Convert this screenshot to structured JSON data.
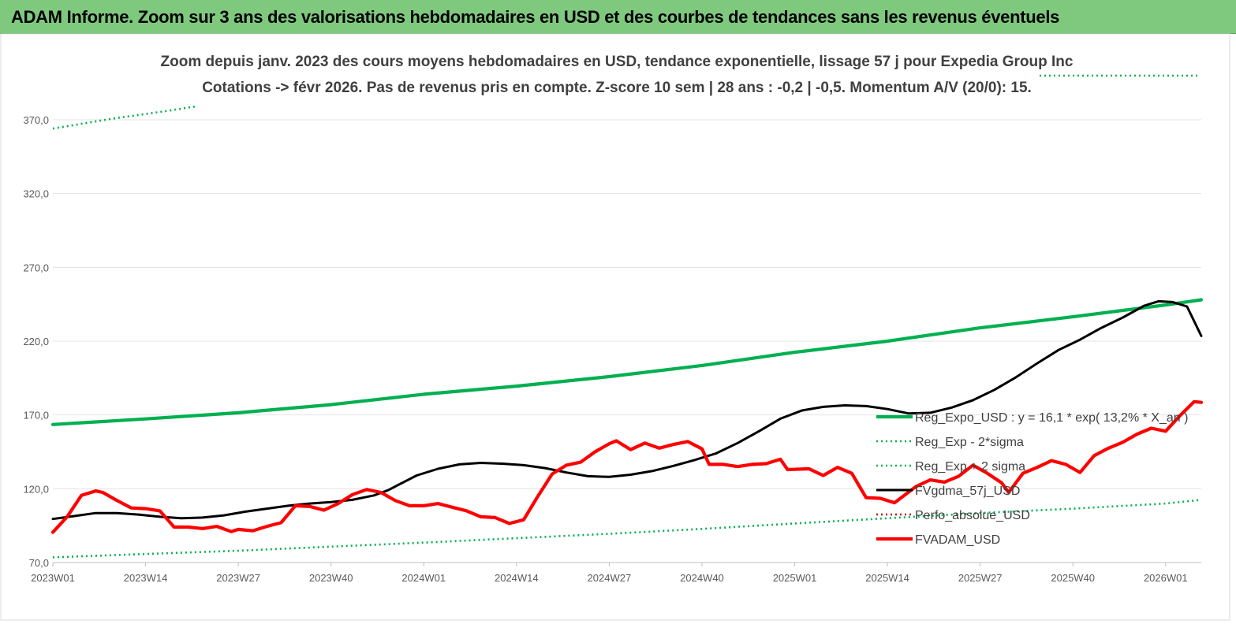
{
  "header": {
    "title": "ADAM Informe. Zoom sur 3 ans des valorisations hebdomadaires en USD et des courbes de tendances sans les revenus éventuels"
  },
  "colors": {
    "header_bg": "#7fc97f",
    "trend": "#00b050",
    "trend_band": "#00b050",
    "moving_avg": "#000000",
    "price": "#ff0000",
    "perf": "#c00000"
  },
  "chart_data": {
    "type": "line",
    "title_line1": "Zoom depuis janv. 2023 des cours moyens hebdomadaires en USD, tendance exponentielle, lissage 57 j pour Expedia Group Inc",
    "title_line2": "Cotations -> févr 2026.  Pas de revenus pris en compte. Z-score 10 sem  | 28 ans : -0,2 | -0,5. Momentum A/V (20/0): 15.",
    "xlabel": "",
    "ylabel": "",
    "ylim": [
      70,
      370
    ],
    "yticks": [
      "70,0",
      "120,0",
      "170,0",
      "220,0",
      "270,0",
      "320,0",
      "370,0"
    ],
    "xticks": [
      "2023W01",
      "2023W14",
      "2023W27",
      "2023W40",
      "2024W01",
      "2024W14",
      "2024W27",
      "2024W40",
      "2025W01",
      "2025W14",
      "2025W27",
      "2025W40",
      "2026W01"
    ],
    "x_start_week_label": "2023W01",
    "n_weeks": 162,
    "grid": "horizontal",
    "legend_position": "right",
    "series": [
      {
        "name": "Reg_Expo_USD : y = 16,1 * exp( 13,2% * X_an )",
        "style": "solid-thick",
        "color": "#00b050",
        "points": [
          [
            0,
            163.5
          ],
          [
            13,
            167.3
          ],
          [
            26,
            171.5
          ],
          [
            39,
            177.0
          ],
          [
            52,
            184.0
          ],
          [
            65,
            189.5
          ],
          [
            78,
            196.0
          ],
          [
            91,
            203.5
          ],
          [
            104,
            212.5
          ],
          [
            117,
            220.0
          ],
          [
            130,
            229.0
          ],
          [
            143,
            236.5
          ],
          [
            156,
            244.5
          ],
          [
            161,
            248.0
          ]
        ]
      },
      {
        "name": "Reg_Exp - 2*sigma",
        "style": "dotted",
        "color": "#00b050",
        "points": [
          [
            0,
            73.5
          ],
          [
            13,
            75.8
          ],
          [
            26,
            78.0
          ],
          [
            39,
            80.8
          ],
          [
            52,
            83.5
          ],
          [
            65,
            86.5
          ],
          [
            78,
            89.5
          ],
          [
            91,
            92.8
          ],
          [
            104,
            96.5
          ],
          [
            117,
            100.0
          ],
          [
            130,
            103.5
          ],
          [
            143,
            106.5
          ],
          [
            156,
            110.0
          ],
          [
            161,
            112.5
          ]
        ]
      },
      {
        "name": "Reg_Exp + 2 sigma",
        "style": "dotted",
        "color": "#00b050",
        "points": [
          [
            0,
            364.0
          ],
          [
            8,
            370.5
          ],
          [
            16,
            376.0
          ],
          [
            20,
            379.0
          ]
        ]
      },
      {
        "name": "FVgdma_57j_USD",
        "style": "solid",
        "color": "#000000",
        "points": [
          [
            0,
            99.5
          ],
          [
            3,
            101.5
          ],
          [
            6,
            103.5
          ],
          [
            9,
            103.5
          ],
          [
            12,
            102.5
          ],
          [
            15,
            101.0
          ],
          [
            18,
            100.0
          ],
          [
            21,
            100.5
          ],
          [
            24,
            102.0
          ],
          [
            27,
            104.5
          ],
          [
            30,
            106.5
          ],
          [
            33,
            108.5
          ],
          [
            36,
            110.0
          ],
          [
            39,
            111.0
          ],
          [
            42,
            112.5
          ],
          [
            45,
            115.5
          ],
          [
            47,
            119.0
          ],
          [
            49,
            124.0
          ],
          [
            51,
            129.0
          ],
          [
            54,
            133.5
          ],
          [
            57,
            136.5
          ],
          [
            60,
            137.5
          ],
          [
            63,
            137.0
          ],
          [
            66,
            136.0
          ],
          [
            69,
            134.0
          ],
          [
            72,
            131.0
          ],
          [
            75,
            128.5
          ],
          [
            78,
            128.0
          ],
          [
            81,
            129.5
          ],
          [
            84,
            132.0
          ],
          [
            87,
            135.5
          ],
          [
            90,
            139.5
          ],
          [
            93,
            144.0
          ],
          [
            96,
            151.0
          ],
          [
            99,
            159.0
          ],
          [
            102,
            167.5
          ],
          [
            105,
            173.0
          ],
          [
            108,
            175.5
          ],
          [
            111,
            176.5
          ],
          [
            114,
            176.0
          ],
          [
            117,
            174.0
          ],
          [
            120,
            171.0
          ],
          [
            123,
            171.5
          ],
          [
            126,
            175.0
          ],
          [
            129,
            180.0
          ],
          [
            132,
            187.0
          ],
          [
            135,
            195.5
          ],
          [
            138,
            205.0
          ],
          [
            141,
            214.0
          ],
          [
            144,
            221.0
          ],
          [
            147,
            229.0
          ],
          [
            150,
            236.0
          ],
          [
            153,
            244.0
          ],
          [
            155,
            247.0
          ],
          [
            157,
            246.5
          ],
          [
            159,
            243.5
          ],
          [
            161,
            223.5
          ]
        ]
      },
      {
        "name": "Perfo_absolue_USD",
        "style": "dotted",
        "color": "#c00000",
        "points": []
      },
      {
        "name": "FVADAM_USD",
        "style": "solid-thick",
        "color": "#ff0000",
        "points": [
          [
            0,
            90.5
          ],
          [
            2,
            101.0
          ],
          [
            4,
            115.5
          ],
          [
            6,
            118.5
          ],
          [
            7,
            117.5
          ],
          [
            9,
            112.0
          ],
          [
            11,
            107.0
          ],
          [
            13,
            106.5
          ],
          [
            15,
            105.0
          ],
          [
            17,
            94.0
          ],
          [
            19,
            94.0
          ],
          [
            21,
            93.0
          ],
          [
            23,
            94.5
          ],
          [
            25,
            91.0
          ],
          [
            26,
            92.5
          ],
          [
            28,
            91.5
          ],
          [
            30,
            94.5
          ],
          [
            32,
            97.0
          ],
          [
            34,
            108.5
          ],
          [
            36,
            108.0
          ],
          [
            38,
            105.5
          ],
          [
            40,
            110.0
          ],
          [
            42,
            116.0
          ],
          [
            44,
            119.5
          ],
          [
            46,
            117.5
          ],
          [
            48,
            112.0
          ],
          [
            50,
            108.5
          ],
          [
            52,
            108.5
          ],
          [
            54,
            110.0
          ],
          [
            56,
            107.5
          ],
          [
            58,
            105.0
          ],
          [
            60,
            101.0
          ],
          [
            62,
            100.5
          ],
          [
            64,
            96.5
          ],
          [
            66,
            99.0
          ],
          [
            68,
            115.0
          ],
          [
            70,
            130.0
          ],
          [
            72,
            136.0
          ],
          [
            74,
            138.0
          ],
          [
            76,
            145.0
          ],
          [
            78,
            150.5
          ],
          [
            79,
            152.5
          ],
          [
            81,
            146.5
          ],
          [
            83,
            151.0
          ],
          [
            85,
            147.5
          ],
          [
            87,
            150.0
          ],
          [
            89,
            152.0
          ],
          [
            91,
            147.0
          ],
          [
            92,
            136.5
          ],
          [
            94,
            136.5
          ],
          [
            96,
            135.0
          ],
          [
            98,
            136.5
          ],
          [
            100,
            137.0
          ],
          [
            102,
            140.0
          ],
          [
            103,
            133.0
          ],
          [
            106,
            133.5
          ],
          [
            108,
            129.0
          ],
          [
            110,
            134.5
          ],
          [
            112,
            130.5
          ],
          [
            114,
            114.0
          ],
          [
            116,
            113.5
          ],
          [
            118,
            110.5
          ],
          [
            121,
            121.5
          ],
          [
            123,
            126.0
          ],
          [
            125,
            124.5
          ],
          [
            127,
            128.5
          ],
          [
            129,
            136.0
          ],
          [
            131,
            130.5
          ],
          [
            133,
            124.0
          ],
          [
            134,
            117.5
          ],
          [
            136,
            130.5
          ],
          [
            138,
            134.5
          ],
          [
            140,
            139.0
          ],
          [
            142,
            136.5
          ],
          [
            144,
            131.0
          ],
          [
            146,
            142.5
          ],
          [
            148,
            147.5
          ],
          [
            150,
            151.5
          ],
          [
            152,
            157.0
          ],
          [
            154,
            161.0
          ],
          [
            156,
            159.0
          ],
          [
            158,
            169.5
          ],
          [
            160,
            179.0
          ],
          [
            161,
            178.5
          ]
        ]
      }
    ]
  },
  "legend": {
    "items": [
      {
        "label": "Reg_Expo_USD : y = 16,1 * exp( 13,2% * X_an )"
      },
      {
        "label": "Reg_Exp - 2*sigma"
      },
      {
        "label": "Reg_Exp + 2 sigma"
      },
      {
        "label": "FVgdma_57j_USD"
      },
      {
        "label": "Perfo_absolue_USD"
      },
      {
        "label": "FVADAM_USD"
      }
    ]
  }
}
